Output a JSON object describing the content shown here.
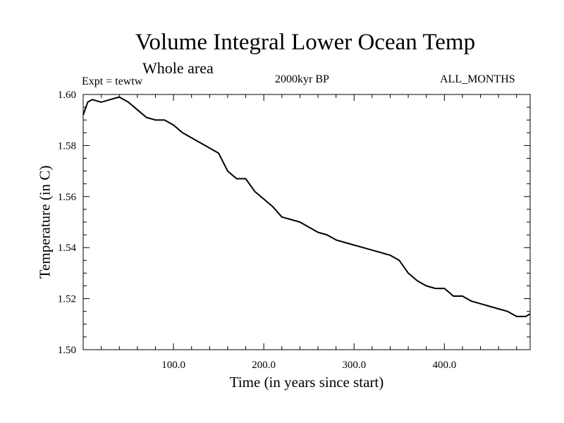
{
  "header": {
    "title": "Volume Integral Lower Ocean Temp",
    "subtitle": "Whole area",
    "experiment": "Expt = tewtw",
    "period": "2000kyr BP",
    "months": "ALL_MONTHS"
  },
  "chart_data": {
    "type": "line",
    "title": "Volume Integral Lower Ocean Temp",
    "xlabel": "Time (in years since start)",
    "ylabel": "Temperature (in C)",
    "xlim": [
      0,
      495
    ],
    "ylim": [
      1.5,
      1.6
    ],
    "xticks": [
      100,
      200,
      300,
      400
    ],
    "xtick_labels": [
      "100.0",
      "200.0",
      "300.0",
      "400.0"
    ],
    "yticks": [
      1.5,
      1.52,
      1.54,
      1.56,
      1.58,
      1.6
    ],
    "ytick_labels": [
      "1.50",
      "1.52",
      "1.54",
      "1.56",
      "1.58",
      "1.60"
    ],
    "series": [
      {
        "name": "Temperature",
        "x": [
          0,
          5,
          10,
          20,
          30,
          40,
          50,
          60,
          70,
          80,
          90,
          100,
          110,
          120,
          130,
          140,
          150,
          160,
          170,
          180,
          190,
          200,
          210,
          220,
          230,
          240,
          250,
          260,
          270,
          280,
          290,
          300,
          310,
          320,
          330,
          340,
          350,
          360,
          370,
          380,
          390,
          400,
          410,
          420,
          430,
          440,
          450,
          460,
          470,
          480,
          490,
          495
        ],
        "y": [
          1.592,
          1.597,
          1.598,
          1.597,
          1.598,
          1.599,
          1.597,
          1.594,
          1.591,
          1.59,
          1.59,
          1.588,
          1.585,
          1.583,
          1.581,
          1.579,
          1.577,
          1.57,
          1.567,
          1.567,
          1.562,
          1.559,
          1.556,
          1.552,
          1.551,
          1.55,
          1.548,
          1.546,
          1.545,
          1.543,
          1.542,
          1.541,
          1.54,
          1.539,
          1.538,
          1.537,
          1.535,
          1.53,
          1.527,
          1.525,
          1.524,
          1.524,
          1.521,
          1.521,
          1.519,
          1.518,
          1.517,
          1.516,
          1.515,
          1.513,
          1.513,
          1.514
        ]
      }
    ]
  }
}
